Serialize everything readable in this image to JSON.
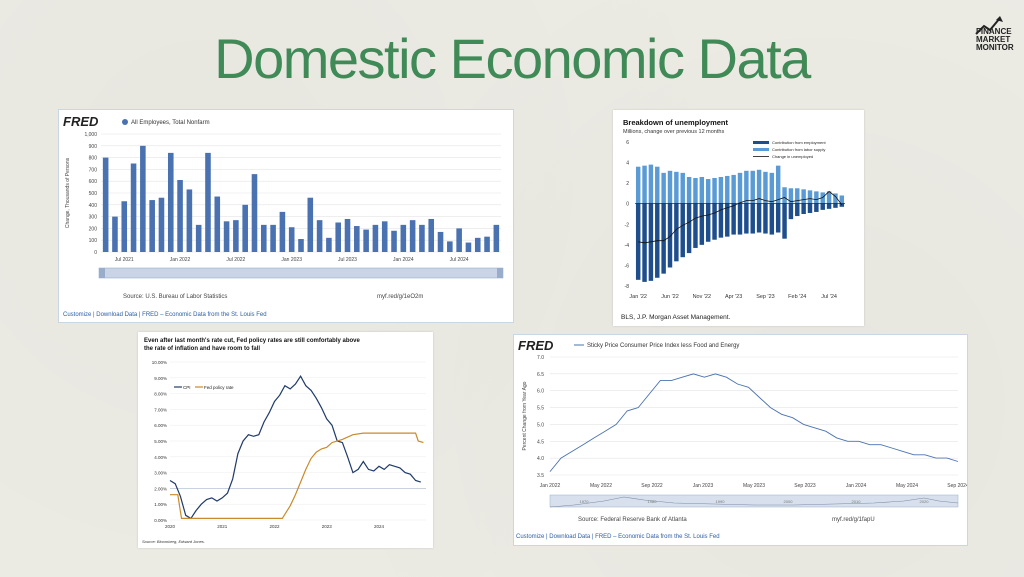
{
  "page": {
    "title": "Domestic Economic Data"
  },
  "logo": {
    "line1": "FINANCE",
    "line2": "MARKET",
    "line3": "MONITOR"
  },
  "chart_data": [
    {
      "type": "bar",
      "fred_logo": "FRED",
      "legend": "All Employees, Total Nonfarm",
      "ylabel": "Change, Thousands of Persons",
      "ylim": [
        0,
        1000
      ],
      "yticks": [
        "0",
        "100",
        "200",
        "300",
        "400",
        "500",
        "600",
        "700",
        "800",
        "900",
        "1,000"
      ],
      "xticks": [
        "Jul 2021",
        "Jan 2022",
        "Jul 2022",
        "Jan 2023",
        "Jul 2023",
        "Jan 2024",
        "Jul 2024"
      ],
      "values": [
        800,
        300,
        430,
        750,
        900,
        440,
        460,
        840,
        610,
        530,
        230,
        840,
        470,
        260,
        270,
        400,
        660,
        230,
        230,
        340,
        210,
        110,
        460,
        270,
        120,
        250,
        280,
        220,
        190,
        230,
        260,
        180,
        230,
        270,
        230,
        280,
        170,
        90,
        200,
        80,
        120,
        130,
        230
      ],
      "source": "Source: U.S. Bureau of Labor Statistics",
      "shortlink": "myf.red/g/1eO2m",
      "footer": "Customize  |  Download Data  |  FRED – Economic Data from the St. Louis Fed"
    },
    {
      "type": "bar",
      "title": "Breakdown of unemployment",
      "subtitle": "Millions, change over previous 12 months",
      "legend": [
        "Contribution from employment",
        "Contribution from labor supply",
        "Change in unemployed"
      ],
      "yticks": [
        "-8",
        "-6",
        "-4",
        "-2",
        "0",
        "2",
        "4",
        "6"
      ],
      "ylim": [
        -8,
        6
      ],
      "xticks": [
        "Jan '22",
        "Jun '22",
        "Nov '22",
        "Apr '23",
        "Sep '23",
        "Feb '24",
        "Jul '24"
      ],
      "employment": [
        -7.4,
        -7.6,
        -7.5,
        -7.2,
        -6.8,
        -6.2,
        -5.6,
        -5.2,
        -4.8,
        -4.3,
        -4.0,
        -3.7,
        -3.5,
        -3.3,
        -3.2,
        -3.0,
        -3.0,
        -2.9,
        -2.9,
        -2.8,
        -2.9,
        -3.0,
        -2.8,
        -3.4,
        -1.5,
        -1.2,
        -1.0,
        -0.9,
        -0.8,
        -0.6,
        -0.5,
        -0.4,
        -0.3
      ],
      "labor_supply": [
        3.6,
        3.7,
        3.8,
        3.6,
        3.0,
        3.2,
        3.1,
        3.0,
        2.6,
        2.5,
        2.6,
        2.4,
        2.5,
        2.6,
        2.7,
        2.8,
        3.0,
        3.2,
        3.2,
        3.3,
        3.1,
        3.0,
        3.7,
        1.6,
        1.5,
        1.5,
        1.4,
        1.3,
        1.2,
        1.1,
        1.2,
        1.0,
        0.8
      ],
      "unemployed": [
        -3.7,
        -3.8,
        -3.7,
        -3.6,
        -3.6,
        -3.2,
        -2.5,
        -2.1,
        -1.8,
        -1.4,
        -1.2,
        -1.1,
        -0.9,
        -0.6,
        -0.4,
        -0.2,
        0.1,
        0.3,
        0.3,
        0.5,
        0.3,
        0.2,
        0.4,
        0.6,
        0.2,
        0.3,
        0.4,
        0.5,
        0.4,
        0.6,
        1.2,
        0.7,
        -0.1
      ],
      "source": "BLS, J.P. Morgan Asset Management."
    },
    {
      "type": "line",
      "title_line1": "Even after last month's rate cut, Fed policy rates are still comfortably above",
      "title_line2": "the rate of inflation and have room to fall",
      "yticks": [
        "0.00%",
        "1.00%",
        "2.00%",
        "3.00%",
        "4.00%",
        "5.00%",
        "6.00%",
        "7.00%",
        "8.00%",
        "9.00%",
        "10.00%"
      ],
      "ylim": [
        0,
        10
      ],
      "xticks": [
        "2020",
        "2021",
        "2022",
        "2023",
        "2024"
      ],
      "xlim": [
        2020.0,
        2024.9
      ],
      "series": [
        {
          "name": "CPI",
          "x": [
            2020.0,
            2020.1,
            2020.2,
            2020.3,
            2020.4,
            2020.5,
            2020.6,
            2020.7,
            2020.8,
            2020.9,
            2021.0,
            2021.1,
            2021.2,
            2021.3,
            2021.4,
            2021.5,
            2021.6,
            2021.7,
            2021.8,
            2021.9,
            2022.0,
            2022.1,
            2022.2,
            2022.3,
            2022.4,
            2022.5,
            2022.6,
            2022.7,
            2022.8,
            2022.9,
            2023.0,
            2023.1,
            2023.2,
            2023.3,
            2023.4,
            2023.5,
            2023.6,
            2023.7,
            2023.8,
            2023.9,
            2024.0,
            2024.1,
            2024.2,
            2024.3,
            2024.4,
            2024.5,
            2024.6,
            2024.7,
            2024.8
          ],
          "values": [
            2.5,
            2.3,
            1.5,
            0.3,
            0.1,
            0.6,
            1.0,
            1.3,
            1.4,
            1.2,
            1.4,
            1.7,
            2.6,
            4.2,
            5.0,
            5.4,
            5.3,
            5.4,
            6.2,
            6.8,
            7.5,
            7.9,
            8.5,
            8.3,
            8.6,
            9.1,
            8.5,
            8.2,
            7.7,
            7.1,
            6.4,
            6.0,
            5.0,
            4.9,
            4.0,
            3.0,
            3.2,
            3.7,
            3.2,
            3.1,
            3.4,
            3.2,
            3.5,
            3.4,
            3.3,
            3.0,
            2.9,
            2.5,
            2.4
          ]
        },
        {
          "name": "Fed policy rate",
          "x": [
            2020.0,
            2020.15,
            2020.22,
            2022.15,
            2022.3,
            2022.4,
            2022.5,
            2022.6,
            2022.7,
            2022.8,
            2022.9,
            2023.0,
            2023.1,
            2023.3,
            2023.5,
            2023.7,
            2024.0,
            2024.7,
            2024.75,
            2024.85
          ],
          "values": [
            1.6,
            1.6,
            0.1,
            0.1,
            0.9,
            1.6,
            2.4,
            3.2,
            3.9,
            4.3,
            4.5,
            4.6,
            4.9,
            5.1,
            5.4,
            5.5,
            5.5,
            5.5,
            5.0,
            4.9
          ]
        }
      ],
      "source": "Source: Bloomberg, Edward Jones."
    },
    {
      "type": "line",
      "fred_logo": "FRED",
      "legend": "Sticky Price Consumer Price Index less Food and Energy",
      "ylabel": "Percent Change from Year Ago",
      "ylim": [
        3.5,
        7.0
      ],
      "yticks": [
        "3.5",
        "4.0",
        "4.5",
        "5.0",
        "5.5",
        "6.0",
        "6.5",
        "7.0"
      ],
      "xticks": [
        "Jan 2022",
        "May 2022",
        "Sep 2022",
        "Jan 2023",
        "May 2023",
        "Sep 2023",
        "Jan 2024",
        "May 2024",
        "Sep 2024"
      ],
      "mini_ticks": [
        "1970",
        "1980",
        "1990",
        "2000",
        "2010",
        "2020"
      ],
      "values": [
        3.6,
        4.0,
        4.2,
        4.4,
        4.6,
        4.8,
        5.0,
        5.4,
        5.5,
        5.9,
        6.3,
        6.3,
        6.4,
        6.5,
        6.4,
        6.5,
        6.4,
        6.2,
        6.1,
        5.8,
        5.5,
        5.3,
        5.2,
        5.0,
        4.9,
        4.8,
        4.6,
        4.5,
        4.5,
        4.4,
        4.4,
        4.3,
        4.2,
        4.1,
        4.1,
        4.0,
        4.0,
        3.9
      ],
      "source": "Source: Federal Reserve Bank of Atlanta",
      "shortlink": "myf.red/g/1fapU",
      "footer": "Customize  |  Download Data  |  FRED – Economic Data from the St. Louis Fed"
    }
  ]
}
